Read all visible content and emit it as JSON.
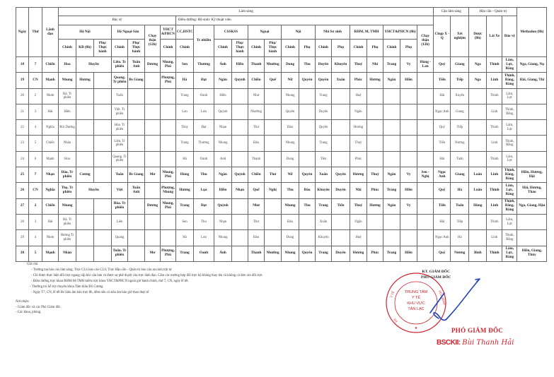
{
  "header": {
    "ngay": "Ngày",
    "thu": "Thứ",
    "lanh_dao": "Lãnh đạo",
    "lam_sang": "Lâm sàng",
    "can_lam_sang": "Cận lâm sàng",
    "hau_can": "Hậu cần - Quản trị",
    "bac_sy": "Bác sỹ",
    "dieu_duong": "Điều dưỡng/ Hộ sinh/ Kỹ thuật viên",
    "he_noi": "Hệ Nội",
    "he_ngoai_san": "Hệ Ngoại-Sản",
    "chay_than_bs": "Chạy thận (12h)",
    "yhct_phcn_bs": "YHCT &PHCN",
    "cc_hstc": "CC,HSTC...",
    "tr_nhiem": "Tr nhiễm",
    "csskss": "CSSKSS",
    "ngoai": "Ngoại",
    "noi": "Nội",
    "nhi": "Nhi Sơ sinh",
    "rhm": "RHM, M, TMH",
    "yhct_phcn_dd": "YHCT&PHCN (8h)",
    "chay_than_dd": "Chạy thận (12h)",
    "chup_xq": "Chụp X - Q",
    "xet_nghiem": "Xét nghiệm",
    "duoc": "Dược (8h)",
    "lai_xe": "Lái Xe",
    "bao_ve": "Bảo vệ",
    "methadon": "Methadon (8h)",
    "chinh": "Chính",
    "kb": "KB (8h)",
    "phu_th": "Phụ/ Thực hành",
    "phu": "Phụ"
  },
  "rows": [
    {
      "bold": true,
      "cells": [
        "18",
        "7",
        "Chiến",
        "Hoa",
        {
          "t": "Huyền",
          "span": 2
        },
        "Liên. Tr phiên",
        "Tuấn Anh",
        "Dương",
        "Nhung, Phú",
        "Sen",
        "Thương",
        "Ánh",
        "Hiền",
        "Thanh",
        "Nhường",
        "Dung",
        "Thu",
        "Duyên",
        "Khuyên",
        "Thuý",
        "Nhi",
        "Trang",
        "Vy",
        "Hùng - Lan",
        "Quý",
        "Giang",
        "Nga",
        "Thinh",
        "Lâm, Lực, Bằng",
        "Nga, Giang, Nụ"
      ]
    },
    {
      "bold": true,
      "cells": [
        "19",
        "CN",
        "Mạnh",
        "Nhung",
        "Hương",
        "",
        "Quang. Tr phiên",
        "Bs Giang",
        "",
        "Phượng, Phú",
        "Hà",
        "Đạt",
        "Ngân",
        "Quỳnh",
        "Chiều",
        "Quế",
        "Nữ",
        "Quyên",
        "Quyên",
        "Xuân",
        "Phúc",
        "Hương",
        "Ngân",
        "Hiền",
        "",
        "Tiến",
        "Tiếp",
        "Nga",
        "Linh",
        "Thịnh, Bằng, Bằng",
        "Hải, Giang, Thi"
      ]
    },
    {
      "bold": false,
      "cells": [
        "20",
        "2",
        "Nhơn",
        "Hà. Tr phiên",
        "",
        "",
        "Tuấn",
        "",
        "",
        "",
        "Trang",
        "Oanh",
        "Hiền",
        "",
        "Như",
        "",
        "Nhung",
        "",
        "Trang",
        "",
        "Huệ",
        "",
        "",
        "",
        "",
        "Hải",
        "Xuyến",
        "",
        "Thinh",
        "Lâm, Lực",
        ""
      ]
    },
    {
      "bold": false,
      "cells": [
        "21",
        "3",
        "Hải",
        "Hiền",
        "",
        "",
        "Việt. Tr phiên",
        "",
        "",
        "",
        "Lan",
        "Lưu",
        "Quỳnh",
        "",
        "Nhường",
        "",
        "Quyên",
        "",
        "Duyên",
        "",
        "Ngân",
        "",
        "",
        "",
        "",
        "Ngọc Anh",
        "Giang",
        "",
        "Linh",
        "Thịnh, Bằng",
        ""
      ]
    },
    {
      "bold": false,
      "cells": [
        "22",
        "4",
        "Nghĩa",
        "Bùi Dương",
        "",
        "",
        "Hòa. Tr phiên",
        "",
        "",
        "",
        "Thủy",
        "Đạt",
        "Nhạn",
        "",
        "Thư",
        "",
        "Đào",
        "",
        "Quyên",
        "",
        "Hương",
        "",
        "",
        "",
        "",
        "Quý",
        "Tiếp",
        "",
        "Thinh",
        "Lâm, Lực",
        ""
      ]
    },
    {
      "bold": false,
      "cells": [
        "23",
        "5",
        "Chiến",
        "Nhàn",
        "",
        "",
        "Liên. Tr phiên",
        "",
        "",
        "",
        "Trang",
        "Thương",
        "Nhung",
        "",
        "Đào",
        "",
        "Nhung",
        "",
        "Trang",
        "",
        "Thuỷ",
        "",
        "",
        "",
        "",
        "Tiến",
        "Nương",
        "",
        "Linh",
        "Thịnh, Bằng",
        ""
      ]
    },
    {
      "bold": false,
      "cells": [
        "24",
        "6",
        "Mạnh",
        "Hoa",
        "",
        "",
        "Quang. Tr phiên",
        "",
        "",
        "",
        "Hà",
        "Oanh",
        "Anh",
        "",
        "Thanh",
        "",
        "Dung",
        "",
        "Tiên",
        "",
        "Phúc",
        "",
        "",
        "",
        "",
        "Hải",
        "Tuấn",
        "",
        "Thinh",
        "Lâm, Lực",
        ""
      ]
    },
    {
      "bold": true,
      "cells": [
        "25",
        "7",
        "Nhạn",
        "Đào, Tr phiên",
        "Cương",
        "",
        "Tuấn",
        "Bs Giang",
        "Mơ",
        "Nhung, Phú",
        "Hùng",
        "Thu",
        "Ngân",
        "Quỳnh",
        "Chiều",
        "Thư",
        "Nữ",
        "Quyên",
        "Xuân",
        "Quyên",
        "Hương",
        "Thuý",
        "Ngân",
        "Vy",
        "Sen - Nghị",
        "Ngọc Anh",
        "Giang",
        "Luân",
        "Linh",
        "Thịnh, Bằng, Bằng",
        "Hiền, Hương, Hội"
      ]
    },
    {
      "bold": true,
      "cells": [
        "26",
        "CN",
        "Nghĩa",
        "Thọ. Tr phiên",
        {
          "t": "Huyền",
          "span": 2
        },
        "Việt",
        "Tuấn Anh",
        "",
        "Phượng, Nhung",
        "Hương",
        "Lụa",
        "Hiền",
        "Nhạn",
        "Quế",
        "Nghị",
        "Thu",
        "Đào",
        "Khuyên",
        "Duyên",
        "Nhi",
        "Phúc",
        "Trang",
        "Hiền",
        "",
        "Quý",
        "Hà",
        "Luân",
        "Thinh",
        "Lâm, Lực, Bằng",
        "Hải, Hương, Thảo"
      ]
    },
    {
      "bold": true,
      "cells": [
        "27",
        "2",
        "Chiến",
        "Nhung",
        "",
        "",
        "Hòa. Tr phiên",
        "",
        "Dương",
        "Nhung, Phú",
        "Trang",
        "Đạt",
        "Quỳnh",
        "",
        "Như",
        "",
        "Nhung",
        "Thu",
        "Trang",
        "Tiến",
        "Thuý",
        "Hương",
        "Ngân",
        "Vy",
        "",
        "Tiến",
        "Tuấn",
        "Hùng",
        "Linh",
        "Thịnh, Bằng, Bằng",
        "Nga, Giang, Hậu"
      ]
    },
    {
      "bold": false,
      "cells": [
        "28",
        "3",
        "Hải",
        "Hà. Tr phiên",
        "",
        "",
        "Liên",
        "",
        "",
        "",
        "Sen",
        "Thu",
        "Nhạn",
        "",
        "Thư",
        "",
        "Đào",
        "",
        "Xuân",
        "",
        "Ngân",
        "",
        "",
        "",
        "",
        "Hải",
        "Tiếp",
        "",
        "Thinh",
        "Lâm, Lực",
        ""
      ]
    },
    {
      "bold": false,
      "cells": [
        "29",
        "4",
        "Nhơn",
        "Hương Tr phiên",
        "",
        "",
        "Quang",
        "",
        "",
        "",
        "Hà",
        "Lưu",
        "Nhung",
        "",
        "Đào",
        "",
        "Dung",
        "",
        "Khuyên",
        "",
        "Huệ",
        "",
        "",
        "",
        "",
        "Ngọc Anh",
        "Hà",
        "",
        "Linh",
        "Thịnh, Bằng",
        ""
      ]
    },
    {
      "bold": true,
      "cells": [
        "30",
        "5",
        "Mạnh",
        "Nhàn",
        "",
        "",
        "Tuấn. Tr phiên",
        "",
        "Mơ",
        "Phượng, Phú",
        "Trang",
        "Oanh",
        "Ánh",
        "",
        "Thanh",
        "Nhường",
        "Nhung",
        "Quyên",
        "Trang",
        "Duyên",
        "Hương",
        "Phúc",
        "Trang",
        "Hiền",
        "",
        "Quý",
        "Nương",
        "Bình",
        "Thinh",
        "Lâm, Lực, Bằng",
        "Hiền, Giang, Thủy"
      ]
    }
  ],
  "notes": {
    "title": "Ghi chú",
    "lines": [
      "- Trưởng tua báo cáo lâm sàng; Trực CLS báo cáo CLS; Trực Hậu cần - Quản trị báo cáo an ninh trật tự",
      "- Chỉ được thực hiện đổi trực ngang cấp khi văn bản và được sự phê duyệt của trực lãnh đạo. Cấm các trường hợp đổi trực hộ không thay tên và không có đơn xin đổi trực",
      "- Điều dưỡng trực khoa RHM-M-TMH kiêm trực khoa YHCT&PHCN ngoài giờ hành chính, thứ 7, CN, ngày lễ tết.",
      "- Thường trú hỗ trợ chuyên khoa Tâm thần BS Cương",
      "- Ngày T7, CN, lễ tết Bs Siêu âm bảo trực 8h, đêm nếu có siêu âm báo giờ theo thực tế"
    ]
  },
  "recipients": {
    "title": "Nơi nhận:",
    "lines": [
      "- Giám đốc và các Phó Giám đốc.",
      "- Các khoa, phòng."
    ]
  },
  "signature": {
    "on_behalf": "KT. GIÁM ĐỐC",
    "role_top": "PHÓ GIÁM ĐỐC",
    "role": "PHÓ GIÁM ĐỐC",
    "degree": "BSCKII:",
    "name": "Bùi Thanh Hải",
    "stamp_text": [
      "TRUNG TÂM",
      "Y TẾ",
      "KHU VỰC",
      "TÂN LẠC"
    ],
    "stamp_color": "#d2222d",
    "ink_color": "#1f3fb8"
  }
}
